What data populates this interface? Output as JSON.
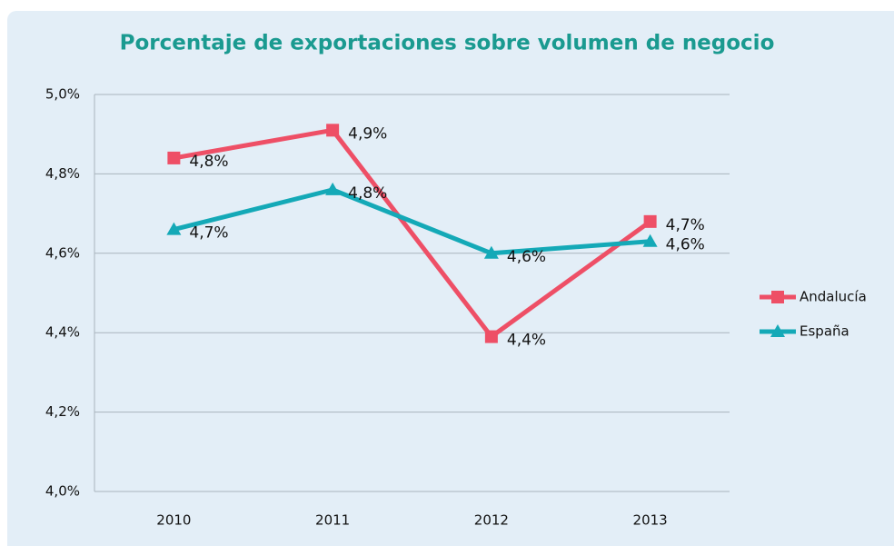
{
  "chart_data": {
    "type": "line",
    "title": "Porcentaje de exportaciones sobre volumen de negocio",
    "categories": [
      "2010",
      "2011",
      "2012",
      "2013"
    ],
    "series": [
      {
        "name": "Andalucía",
        "color": "#ee4f66",
        "marker": "square",
        "values": [
          4.84,
          4.91,
          4.39,
          4.68
        ],
        "value_labels": [
          "4,8%",
          "4,9%",
          "4,4%",
          "4,7%"
        ]
      },
      {
        "name": "España",
        "color": "#14a9b7",
        "marker": "triangle",
        "values": [
          4.66,
          4.76,
          4.6,
          4.63
        ],
        "value_labels": [
          "4,7%",
          "4,8%",
          "4,6%",
          "4,6%"
        ]
      }
    ],
    "ylim": [
      4.0,
      5.0
    ],
    "yticks": [
      {
        "value": 4.0,
        "label": "4,0%"
      },
      {
        "value": 4.2,
        "label": "4,2%"
      },
      {
        "value": 4.4,
        "label": "4,4%"
      },
      {
        "value": 4.6,
        "label": "4,6%"
      },
      {
        "value": 4.8,
        "label": "4,8%"
      },
      {
        "value": 5.0,
        "label": "5,0%"
      }
    ],
    "grid": true,
    "legend": "right"
  }
}
